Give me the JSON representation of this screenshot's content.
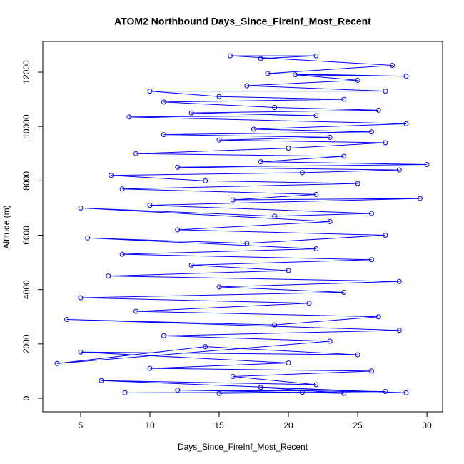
{
  "chart_data": {
    "type": "line",
    "markers": "open-circle",
    "title": "ATOM2 Northbound Days_Since_FireInf_Most_Recent",
    "x_label": "Days_Since_FireInf_Most_Recent",
    "y_label": "Altitude (m)",
    "x": [
      8.2,
      21,
      15,
      27,
      12,
      24,
      18,
      28.5,
      6.5,
      22,
      16,
      26,
      10,
      20,
      5,
      25,
      14,
      3.3,
      23,
      11,
      28,
      4,
      19,
      26.5,
      9,
      21.5,
      5,
      24,
      15,
      28,
      7,
      20,
      13,
      26,
      8,
      22,
      5.5,
      17,
      27,
      12,
      23,
      5,
      19,
      26,
      10,
      29.5,
      16,
      22,
      8,
      25,
      14,
      7.2,
      21,
      28,
      12,
      30,
      18,
      24,
      9,
      20,
      27,
      15,
      23,
      11,
      26,
      17.5,
      28.5,
      8.5,
      22,
      13,
      26.5,
      19,
      11,
      24,
      15,
      10,
      27,
      17,
      25,
      20.5,
      28.5,
      18.5,
      27.5,
      15.8,
      22,
      18
    ],
    "series": [
      {
        "name": "Altitude",
        "color": "#0000ff",
        "values": [
          200,
          220,
          180,
          250,
          300,
          180,
          400,
          200,
          650,
          500,
          800,
          1000,
          1100,
          1300,
          1700,
          1600,
          1900,
          1280,
          2100,
          2300,
          2500,
          2900,
          2700,
          3000,
          3200,
          3500,
          3700,
          3900,
          4100,
          4300,
          4500,
          4700,
          4900,
          5100,
          5300,
          5500,
          5900,
          5700,
          6000,
          6200,
          6500,
          7000,
          6700,
          6800,
          7100,
          7350,
          7300,
          7500,
          7700,
          7900,
          8000,
          8200,
          8300,
          8400,
          8500,
          8600,
          8700,
          8900,
          9000,
          9200,
          9400,
          9500,
          9600,
          9700,
          9800,
          9900,
          10100,
          10350,
          10400,
          10500,
          10600,
          10700,
          10900,
          11000,
          11100,
          11300,
          11300,
          11500,
          11700,
          11900,
          11850,
          11950,
          12250,
          12600,
          12600,
          12500
        ]
      }
    ],
    "xlim": [
      2.27,
      31.13
    ],
    "ylim": [
      -499,
      13129
    ],
    "xticks": [
      5,
      10,
      15,
      20,
      25,
      30
    ],
    "yticks": [
      0,
      2000,
      4000,
      6000,
      8000,
      10000,
      12000
    ]
  }
}
